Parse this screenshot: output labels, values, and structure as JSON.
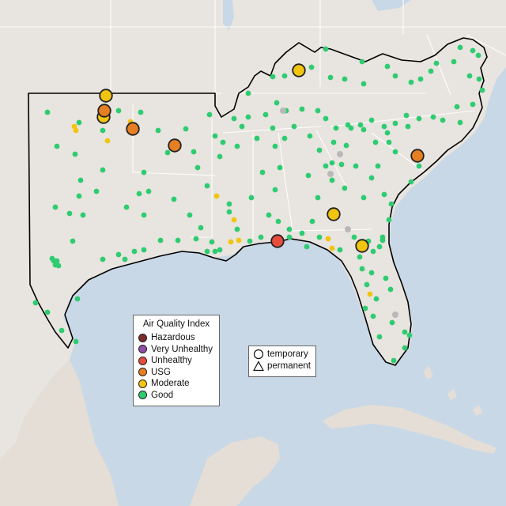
{
  "map": {
    "land_color": "#e8e4df",
    "water_color": "#c9d8e6",
    "border_color": "#ffffff",
    "region_outline_color": "#000000"
  },
  "legend": {
    "title": "Air Quality Index",
    "categories": [
      {
        "label": "Hazardous",
        "color": "#7e2b2b"
      },
      {
        "label": "Very Unhealthy",
        "color": "#8f4fa8"
      },
      {
        "label": "Unhealthy",
        "color": "#e74c3c"
      },
      {
        "label": "USG",
        "color": "#e67e22"
      },
      {
        "label": "Moderate",
        "color": "#f1c40f"
      },
      {
        "label": "Good",
        "color": "#2ecc71"
      }
    ]
  },
  "monitor_types": {
    "temporary": {
      "label": "temporary",
      "icon": "circle-outline-icon"
    },
    "permanent": {
      "label": "permanent",
      "icon": "triangle-outline-icon"
    }
  },
  "monitor_counts": {
    "Unhealthy": 1,
    "USG": 5,
    "Moderate": 5
  }
}
